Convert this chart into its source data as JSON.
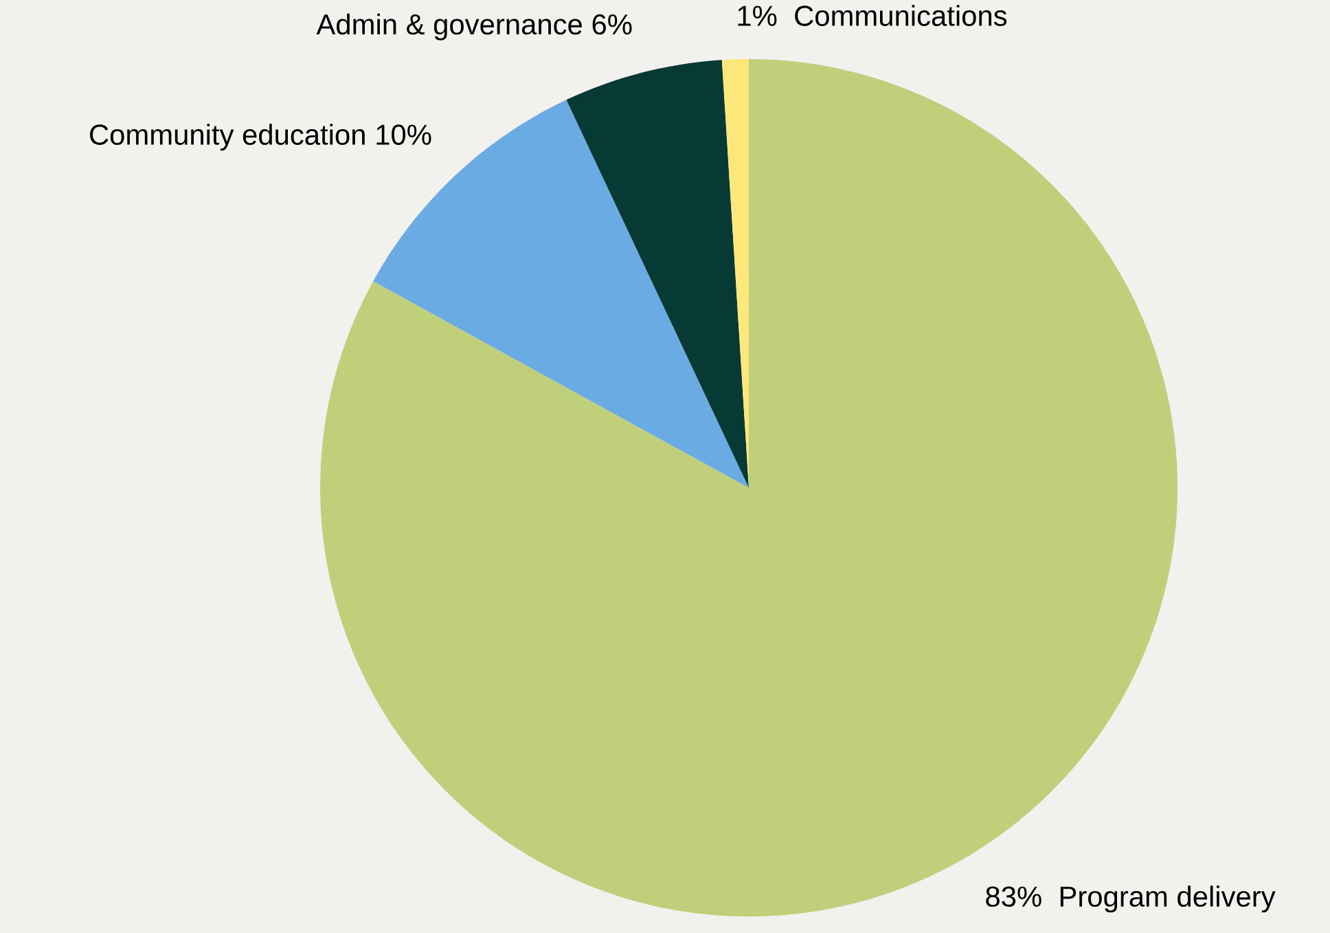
{
  "chart_data": {
    "type": "pie",
    "categories": [
      "Program delivery",
      "Community education",
      "Admin & governance",
      "Communications"
    ],
    "values": [
      83,
      10,
      6,
      1
    ],
    "colors": [
      "#bfcf7a",
      "#6aabe3",
      "#073a35",
      "#fce77a"
    ],
    "value_labels": [
      "83%",
      "10%",
      "6%",
      "1%"
    ]
  }
}
